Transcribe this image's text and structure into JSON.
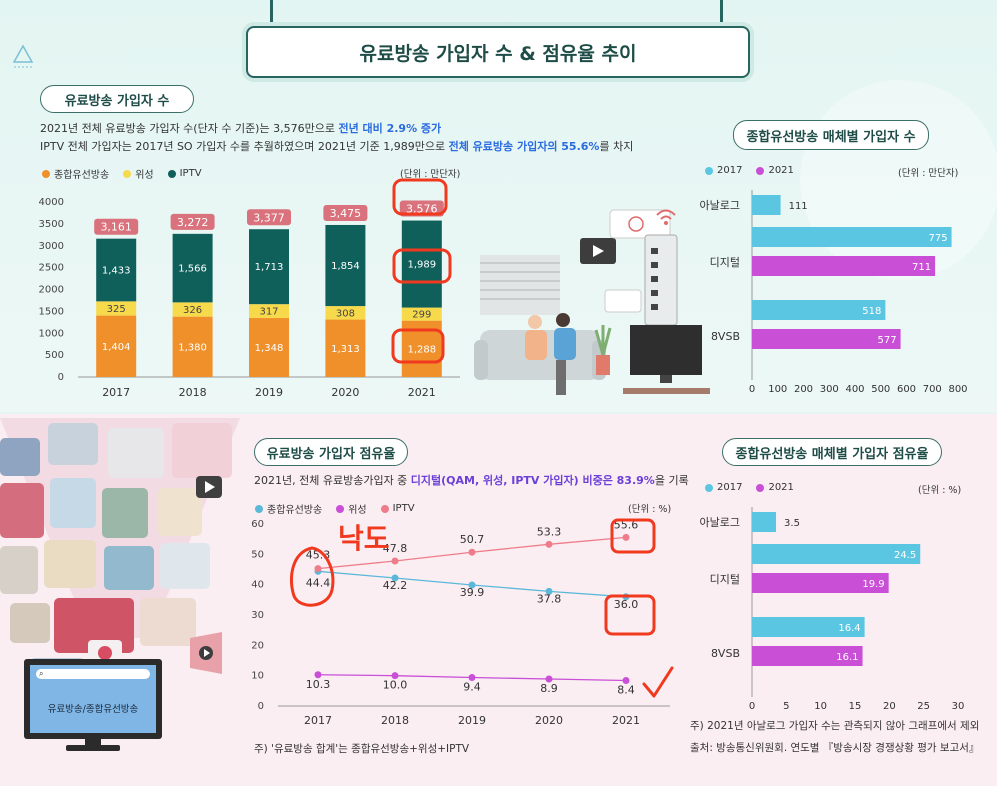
{
  "title": "유료방송 가입자 수 & 점유율 추이",
  "subscribers": {
    "pill": "유료방송 가입자 수",
    "desc1_a": "2021년 전체 유료방송 가입자 수(단자 수 기준)는 3,576만으로 ",
    "desc1_b": "전년 대비 2.9% 증가",
    "desc2_a": "IPTV 전체 가입자는 2017년 SO 가입자 수를 추월하였으며 2021년 기준 1,989만으로 ",
    "desc2_b": "전체 유료방송 가입자의 55.6%",
    "desc2_c": "를 차지",
    "unit": "(단위 : 만단자)"
  },
  "share": {
    "pill": "유료방송 가입자 점유율",
    "desc_a": "2021년, 전체 유료방송가입자 중 ",
    "desc_b": "디지털(QAM, 위성, IPTV 가입자) 비중은 83.9%",
    "desc_c": "을 기록",
    "unit": "(단위 : %)",
    "note": "주) '유료방송 합계'는 종합유선방송+위성+IPTV"
  },
  "cable_subs": {
    "pill": "종합유선방송 매체별 가입자 수",
    "unit": "(단위 : 만단자)"
  },
  "cable_share": {
    "pill": "종합유선방송 매체별 가입자 점유율",
    "unit": "(단위 : %)",
    "note1": "주) 2021년 아날로그 가입자 수는 관측되지 않아 그래프에서 제외",
    "note2": "출처: 방송통신위원회. 연도별 『방송시장 경쟁상황 평가 보고서』"
  },
  "illustration": {
    "tv_screen_label": "유료방송/종합유선방송"
  },
  "handwriting": "낙도",
  "colors": {
    "cable": "#f0902a",
    "satellite": "#f7da4b",
    "iptv": "#0f5f5a",
    "total_label": "#d9727c",
    "y2017": "#5bc6e2",
    "y2021": "#c94fd6",
    "line_cable": "#5bb8d8",
    "line_sat": "#c94fd6",
    "line_iptv": "#ef7c8a",
    "annot": "#f0391e"
  },
  "chart_data": [
    {
      "type": "bar",
      "stacked": true,
      "categories": [
        "2017",
        "2018",
        "2019",
        "2020",
        "2021"
      ],
      "series": [
        {
          "name": "종합유선방송",
          "values": [
            1404,
            1380,
            1348,
            1313,
            1288
          ]
        },
        {
          "name": "위성",
          "values": [
            325,
            326,
            317,
            308,
            299
          ]
        },
        {
          "name": "IPTV",
          "values": [
            1433,
            1566,
            1713,
            1854,
            1989
          ]
        }
      ],
      "totals": [
        3161,
        3272,
        3377,
        3475,
        3576
      ],
      "ylim": [
        0,
        4000
      ],
      "yticks": [
        0,
        500,
        1000,
        1500,
        2000,
        2500,
        3000,
        3500,
        4000
      ],
      "legend": "top-left"
    },
    {
      "type": "line",
      "x": [
        "2017",
        "2018",
        "2019",
        "2020",
        "2021"
      ],
      "series": [
        {
          "name": "종합유선방송",
          "values": [
            44.4,
            42.2,
            39.9,
            37.8,
            36.0
          ]
        },
        {
          "name": "위성",
          "values": [
            10.3,
            10.0,
            9.4,
            8.9,
            8.4
          ]
        },
        {
          "name": "IPTV",
          "values": [
            45.3,
            47.8,
            50.7,
            53.3,
            55.6
          ]
        }
      ],
      "ylim": [
        0,
        60
      ],
      "yticks": [
        0,
        10,
        20,
        30,
        40,
        50,
        60
      ],
      "legend": "top-left"
    },
    {
      "type": "bar",
      "orientation": "horizontal",
      "categories": [
        "아날로그",
        "디지털",
        "8VSB"
      ],
      "series": [
        {
          "name": "2017",
          "values": [
            111,
            775,
            518
          ]
        },
        {
          "name": "2021",
          "values": [
            null,
            711,
            577
          ]
        }
      ],
      "xlim": [
        0,
        800
      ],
      "xticks": [
        0,
        100,
        200,
        300,
        400,
        500,
        600,
        700,
        800
      ],
      "legend": "top-left"
    },
    {
      "type": "bar",
      "orientation": "horizontal",
      "categories": [
        "아날로그",
        "디지털",
        "8VSB"
      ],
      "series": [
        {
          "name": "2017",
          "values": [
            3.5,
            24.5,
            16.4
          ]
        },
        {
          "name": "2021",
          "values": [
            null,
            19.9,
            16.1
          ]
        }
      ],
      "xlim": [
        0,
        30
      ],
      "xticks": [
        0,
        5,
        10,
        15,
        20,
        25,
        30
      ],
      "legend": "top-left"
    }
  ]
}
